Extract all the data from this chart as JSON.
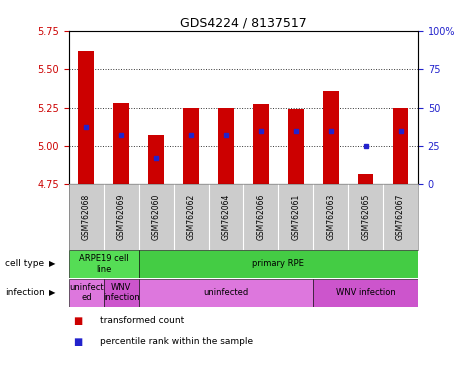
{
  "title": "GDS4224 / 8137517",
  "samples": [
    "GSM762068",
    "GSM762069",
    "GSM762060",
    "GSM762062",
    "GSM762064",
    "GSM762066",
    "GSM762061",
    "GSM762063",
    "GSM762065",
    "GSM762067"
  ],
  "transformed_counts": [
    5.62,
    5.28,
    5.07,
    5.25,
    5.25,
    5.27,
    5.24,
    5.36,
    4.82,
    5.25
  ],
  "percentile_ranks": [
    37,
    32,
    17,
    32,
    32,
    35,
    35,
    35,
    25,
    35
  ],
  "ylim": [
    4.75,
    5.75
  ],
  "yticks": [
    4.75,
    5.0,
    5.25,
    5.5,
    5.75
  ],
  "y2ticks": [
    0,
    25,
    50,
    75,
    100
  ],
  "y2labels": [
    "0",
    "25",
    "50",
    "75",
    "100%"
  ],
  "bar_color": "#cc0000",
  "dot_color": "#2222cc",
  "bar_width": 0.45,
  "cell_type_groups": [
    {
      "text": "ARPE19 cell\nline",
      "span": [
        0,
        2
      ],
      "color": "#55dd55"
    },
    {
      "text": "primary RPE",
      "span": [
        2,
        10
      ],
      "color": "#44cc44"
    }
  ],
  "infection_groups": [
    {
      "text": "uninfect\ned",
      "span": [
        0,
        1
      ],
      "color": "#dd77dd"
    },
    {
      "text": "WNV\ninfection",
      "span": [
        1,
        2
      ],
      "color": "#cc55cc"
    },
    {
      "text": "uninfected",
      "span": [
        2,
        7
      ],
      "color": "#dd77dd"
    },
    {
      "text": "WNV infection",
      "span": [
        7,
        10
      ],
      "color": "#cc55cc"
    }
  ],
  "legend_items": [
    {
      "color": "#cc0000",
      "label": "transformed count"
    },
    {
      "color": "#2222cc",
      "label": "percentile rank within the sample"
    }
  ],
  "background_color": "#ffffff",
  "tick_color_left": "#cc0000",
  "tick_color_right": "#2222cc",
  "sample_box_color": "#cccccc",
  "cell_type_label": "cell type",
  "infection_label": "infection"
}
